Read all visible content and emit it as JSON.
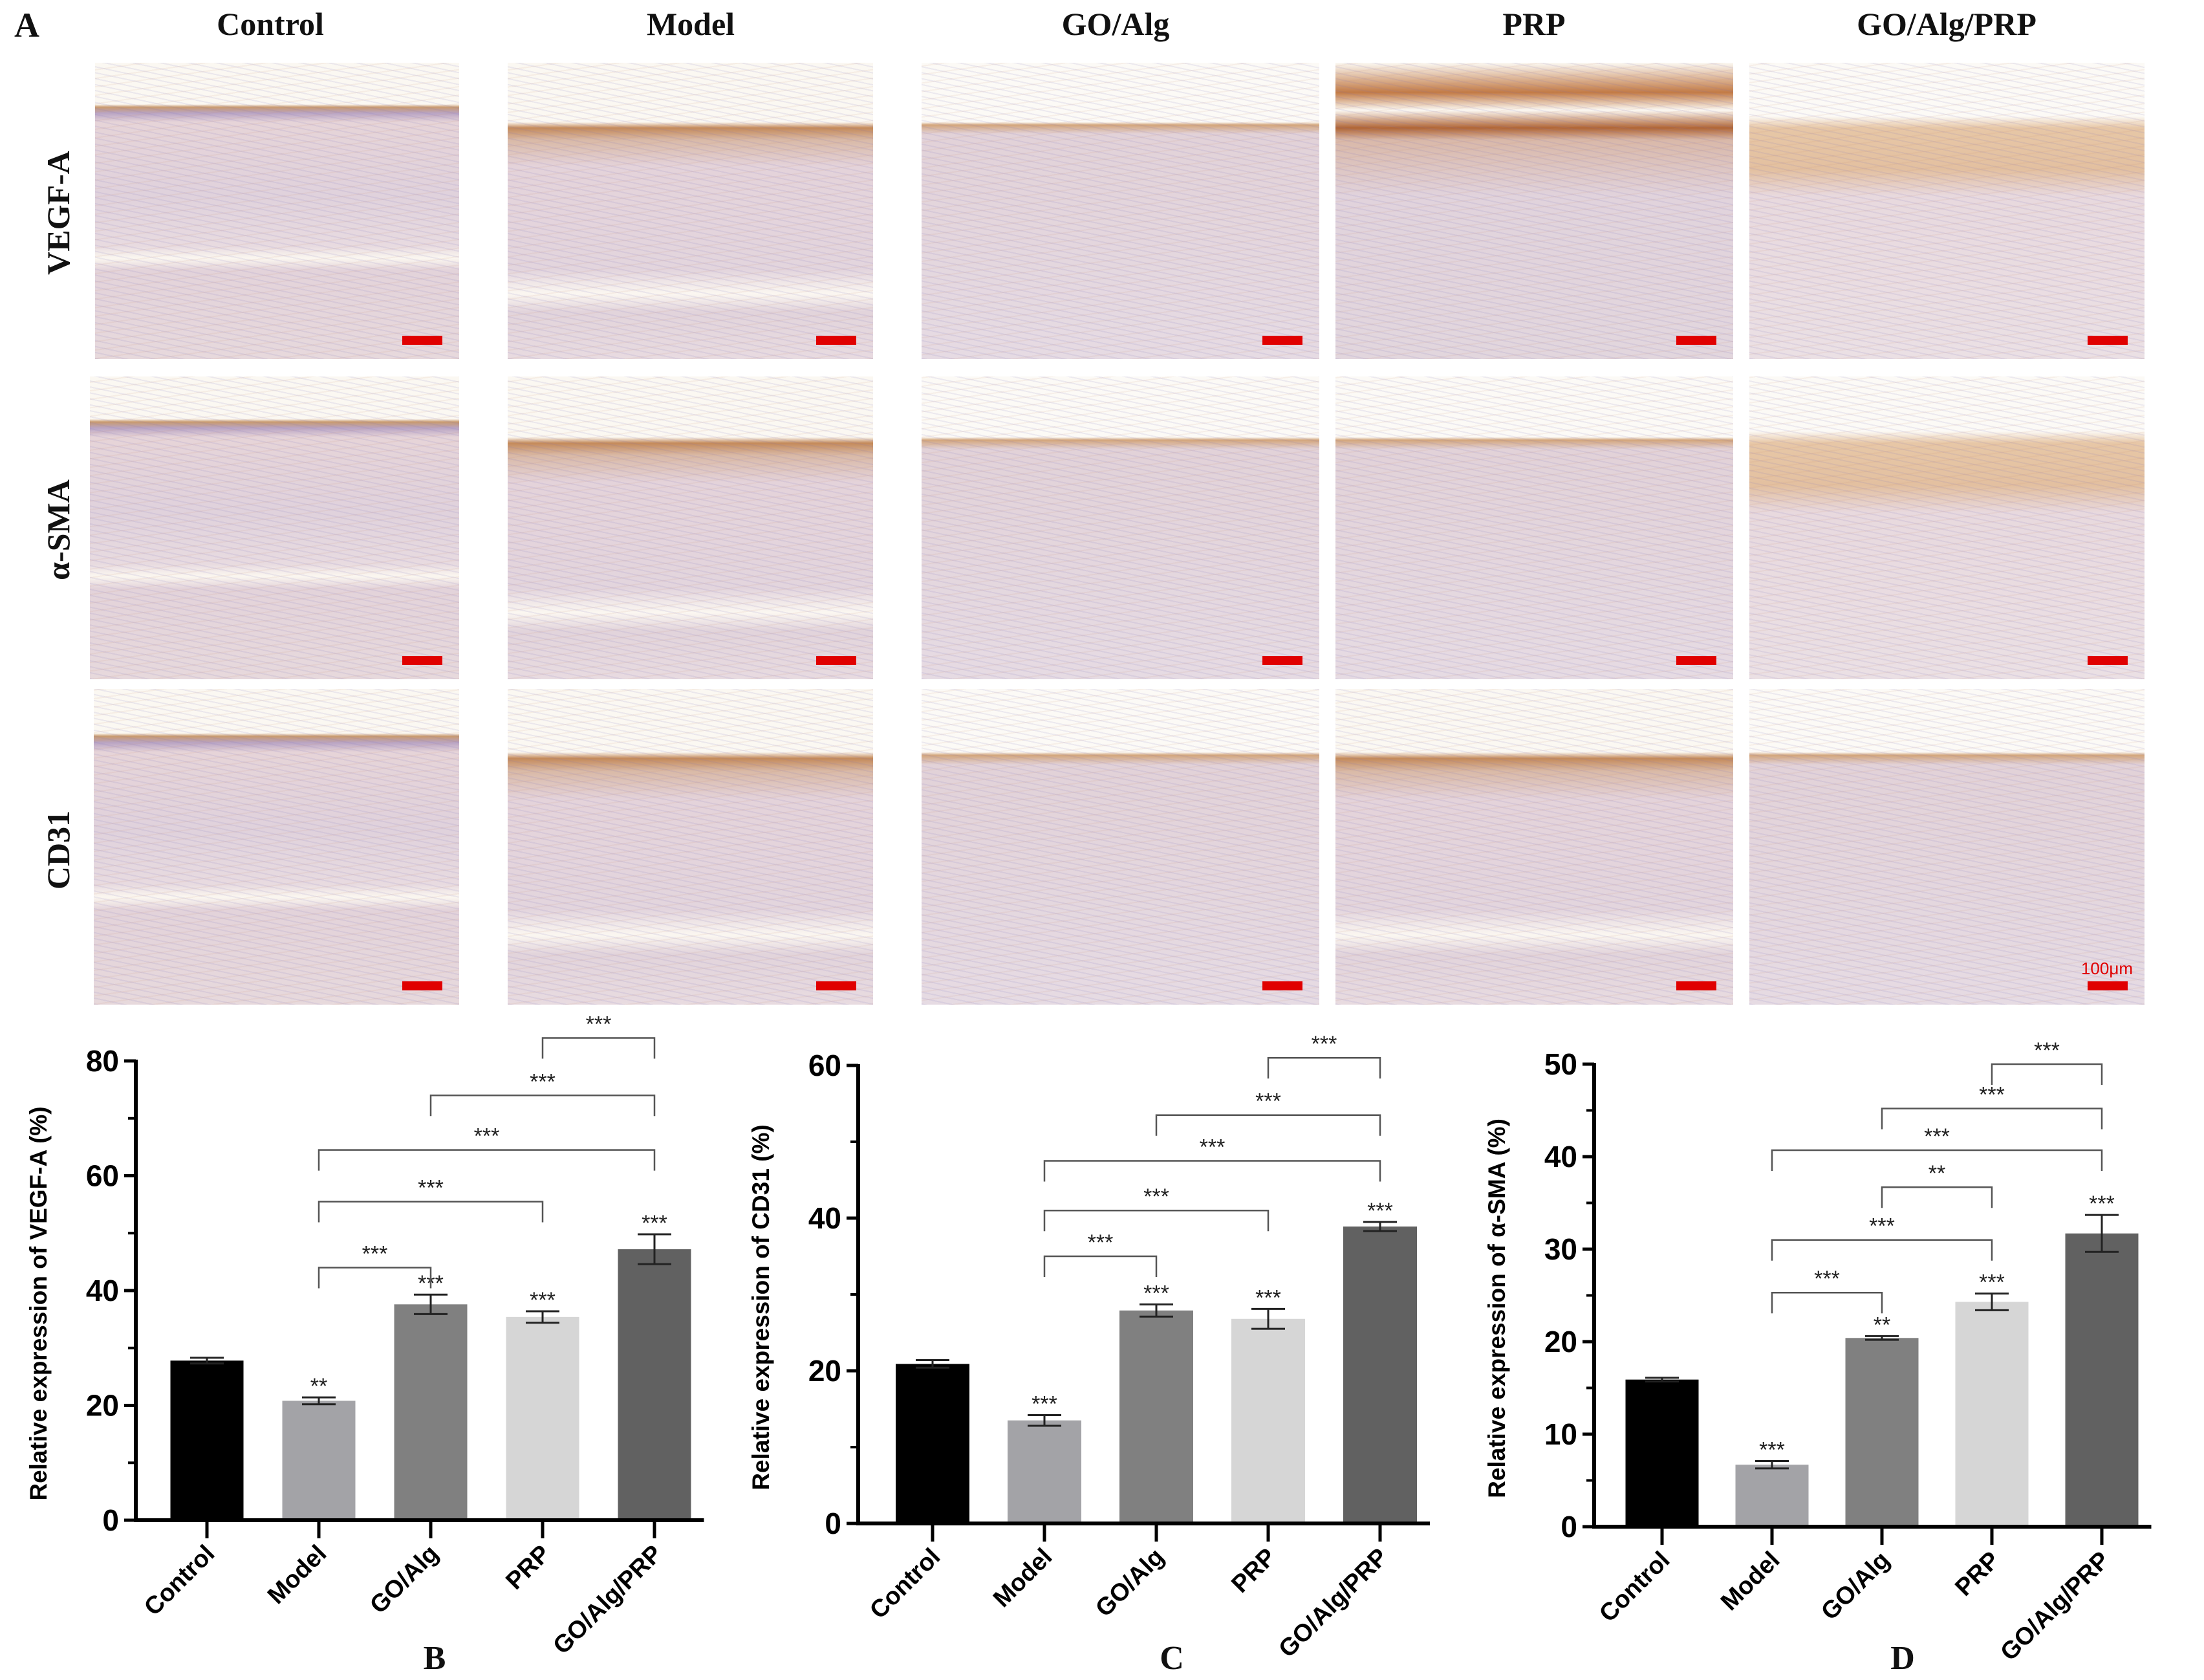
{
  "figure": {
    "panel_letter_a": "A",
    "column_labels": [
      "Control",
      "Model",
      "GO/Alg",
      "PRP",
      "GO/Alg/PRP"
    ],
    "row_labels": [
      "VEGF-A",
      "α-SMA",
      "CD31"
    ],
    "scale_bar_label": "100μm",
    "scale_bar_color": "#e00000"
  },
  "chart_data": [
    {
      "id": "B",
      "type": "bar",
      "title": "",
      "panel_letter": "B",
      "xlabel": "",
      "ylabel": "Relative expression of VEGF-A (%)",
      "ylim": [
        0,
        80
      ],
      "yticks": [
        0,
        20,
        40,
        60,
        80
      ],
      "minor_ticks": [
        10,
        30,
        50,
        70
      ],
      "grid": false,
      "categories": [
        "Control",
        "Model",
        "GO/Alg",
        "PRP",
        "GO/Alg/PRP"
      ],
      "values": [
        27.8,
        20.8,
        37.6,
        35.4,
        47.2
      ],
      "errors": [
        0.5,
        0.6,
        1.7,
        1.0,
        2.6
      ],
      "bar_colors": [
        "#000000",
        "#a3a3a7",
        "#808080",
        "#d6d6d6",
        "#616161"
      ],
      "bar_annotations": [
        "",
        "**",
        "***",
        "***",
        "***"
      ],
      "comparisons": [
        {
          "from": "Model",
          "to": "GO/Alg",
          "label": "***",
          "y": 44
        },
        {
          "from": "Model",
          "to": "PRP",
          "label": "***",
          "y": 55.5
        },
        {
          "from": "Model",
          "to": "GO/Alg/PRP",
          "label": "***",
          "y": 64.5
        },
        {
          "from": "GO/Alg",
          "to": "GO/Alg/PRP",
          "label": "***",
          "y": 74
        },
        {
          "from": "PRP",
          "to": "GO/Alg/PRP",
          "label": "***",
          "y": 84
        }
      ]
    },
    {
      "id": "C",
      "type": "bar",
      "title": "",
      "panel_letter": "C",
      "xlabel": "",
      "ylabel": "Relative expression of CD31 (%)",
      "ylim": [
        0,
        60
      ],
      "yticks": [
        0,
        20,
        40,
        60
      ],
      "minor_ticks": [
        10,
        30,
        50
      ],
      "grid": false,
      "categories": [
        "Control",
        "Model",
        "GO/Alg",
        "PRP",
        "GO/Alg/PRP"
      ],
      "values": [
        20.9,
        13.5,
        27.9,
        26.8,
        38.9
      ],
      "errors": [
        0.5,
        0.7,
        0.8,
        1.3,
        0.6
      ],
      "bar_colors": [
        "#000000",
        "#a3a3a7",
        "#808080",
        "#d6d6d6",
        "#616161"
      ],
      "bar_annotations": [
        "",
        "***",
        "***",
        "***",
        "***"
      ],
      "comparisons": [
        {
          "from": "Model",
          "to": "GO/Alg",
          "label": "***",
          "y": 35
        },
        {
          "from": "Model",
          "to": "PRP",
          "label": "***",
          "y": 41
        },
        {
          "from": "Model",
          "to": "GO/Alg/PRP",
          "label": "***",
          "y": 47.5
        },
        {
          "from": "GO/Alg",
          "to": "GO/Alg/PRP",
          "label": "***",
          "y": 53.5
        },
        {
          "from": "PRP",
          "to": "GO/Alg/PRP",
          "label": "***",
          "y": 61
        }
      ]
    },
    {
      "id": "D",
      "type": "bar",
      "title": "",
      "panel_letter": "D",
      "xlabel": "",
      "ylabel": "Relative expression of α-SMA (%)",
      "ylim": [
        0,
        50
      ],
      "yticks": [
        0,
        10,
        20,
        30,
        40,
        50
      ],
      "minor_ticks": [
        5,
        15,
        25,
        35,
        45
      ],
      "grid": false,
      "categories": [
        "Control",
        "Model",
        "GO/Alg",
        "PRP",
        "GO/Alg/PRP"
      ],
      "values": [
        15.9,
        6.7,
        20.4,
        24.3,
        31.7
      ],
      "errors": [
        0.2,
        0.4,
        0.2,
        0.9,
        2.0
      ],
      "bar_colors": [
        "#000000",
        "#a3a3a7",
        "#808080",
        "#d6d6d6",
        "#616161"
      ],
      "bar_annotations": [
        "",
        "***",
        "**",
        "***",
        "***"
      ],
      "comparisons": [
        {
          "from": "Model",
          "to": "GO/Alg",
          "label": "***",
          "y": 25.3
        },
        {
          "from": "Model",
          "to": "PRP",
          "label": "***",
          "y": 31
        },
        {
          "from": "GO/Alg",
          "to": "PRP",
          "label": "**",
          "y": 36.7
        },
        {
          "from": "Model",
          "to": "GO/Alg/PRP",
          "label": "***",
          "y": 40.7
        },
        {
          "from": "GO/Alg",
          "to": "GO/Alg/PRP",
          "label": "***",
          "y": 45.2
        },
        {
          "from": "PRP",
          "to": "GO/Alg/PRP",
          "label": "***",
          "y": 50
        }
      ]
    }
  ]
}
